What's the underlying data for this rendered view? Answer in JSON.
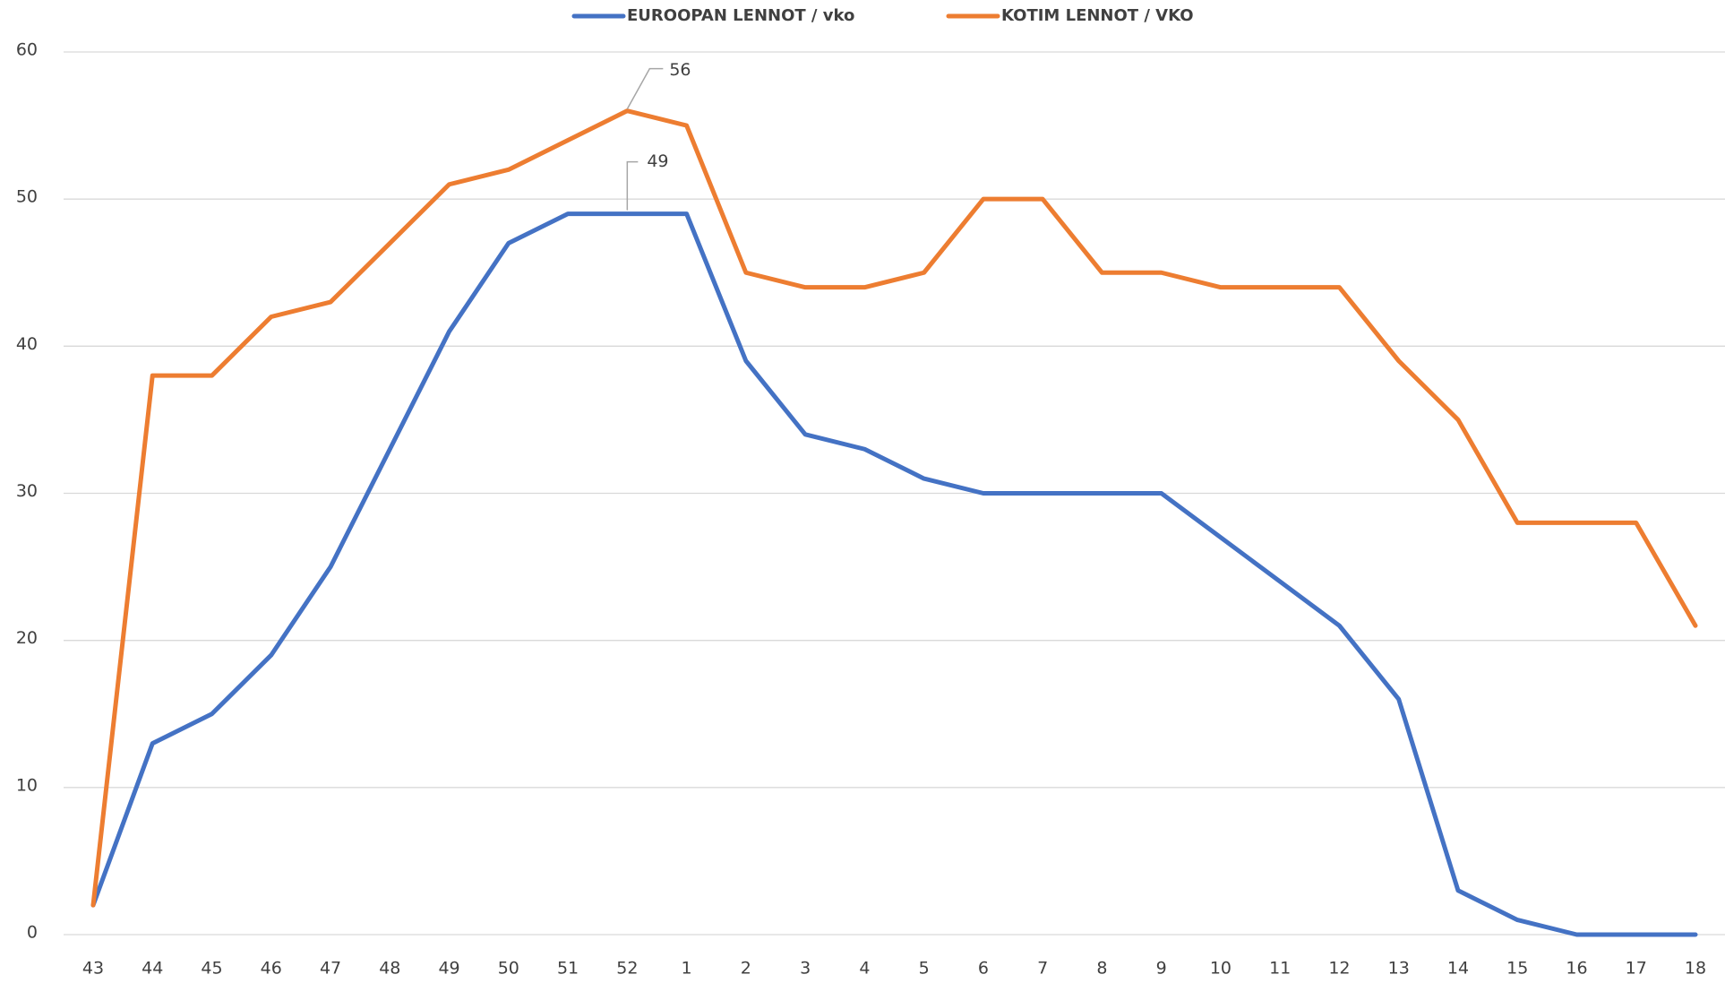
{
  "chart_data": {
    "type": "line",
    "categories": [
      "43",
      "44",
      "45",
      "46",
      "47",
      "48",
      "49",
      "50",
      "51",
      "52",
      "1",
      "2",
      "3",
      "4",
      "5",
      "6",
      "7",
      "8",
      "9",
      "10",
      "11",
      "12",
      "13",
      "14",
      "15",
      "16",
      "17",
      "18"
    ],
    "series": [
      {
        "name": "EUROOPAN LENNOT / vko",
        "color": "#4472c4",
        "values": [
          2,
          13,
          15,
          19,
          25,
          33,
          41,
          47,
          49,
          49,
          49,
          39,
          34,
          33,
          31,
          30,
          30,
          30,
          30,
          27,
          24,
          21,
          16,
          3,
          1,
          0,
          0,
          0
        ]
      },
      {
        "name": "KOTIM LENNOT / VKO",
        "color": "#ed7d31",
        "values": [
          2,
          38,
          38,
          42,
          43,
          47,
          51,
          52,
          54,
          56,
          55,
          45,
          44,
          44,
          45,
          50,
          50,
          45,
          45,
          44,
          44,
          44,
          39,
          35,
          28,
          28,
          28,
          21
        ]
      }
    ],
    "ylim": [
      0,
      60
    ],
    "yticks": [
      0,
      10,
      20,
      30,
      40,
      50,
      60
    ],
    "grid": true,
    "legend": "top"
  }
}
